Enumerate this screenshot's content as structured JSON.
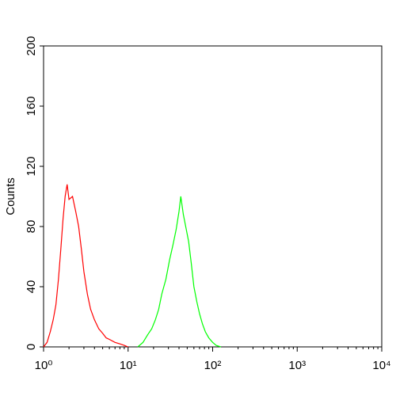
{
  "chart_data": {
    "type": "line",
    "y_label": "Counts",
    "log_x": true,
    "xlim": [
      1,
      10000
    ],
    "xticks": [
      {
        "value": 1,
        "label": "10⁰"
      },
      {
        "value": 10,
        "label": "10¹"
      },
      {
        "value": 100,
        "label": "10²"
      },
      {
        "value": 1000,
        "label": "10³"
      },
      {
        "value": 10000,
        "label": "10⁴"
      }
    ],
    "ylim": [
      0,
      200
    ],
    "yticks": [
      0,
      40,
      80,
      120,
      160,
      200
    ],
    "series": [
      {
        "color": "#ff0000",
        "x": [
          1.0,
          1.1,
          1.2,
          1.3,
          1.4,
          1.5,
          1.6,
          1.7,
          1.8,
          1.9,
          2.0,
          2.2,
          2.4,
          2.6,
          2.8,
          3.0,
          3.3,
          3.6,
          4.0,
          4.5,
          5,
          5.5,
          6,
          7,
          8,
          9,
          10
        ],
        "values": [
          0,
          3,
          10,
          18,
          28,
          45,
          65,
          85,
          100,
          108,
          98,
          100,
          90,
          80,
          65,
          50,
          35,
          25,
          18,
          12,
          9,
          6,
          5,
          3,
          2,
          1,
          0
        ]
      },
      {
        "color": "#00ff00",
        "x": [
          13,
          15,
          17,
          19,
          21,
          23,
          25,
          28,
          31,
          34,
          37,
          40,
          42,
          45,
          48,
          52,
          56,
          60,
          65,
          70,
          76,
          82,
          90,
          100,
          110,
          125
        ],
        "values": [
          0,
          3,
          8,
          12,
          18,
          25,
          35,
          45,
          58,
          68,
          78,
          90,
          100,
          88,
          80,
          70,
          55,
          40,
          30,
          22,
          15,
          10,
          6,
          3,
          1,
          0
        ]
      }
    ]
  }
}
